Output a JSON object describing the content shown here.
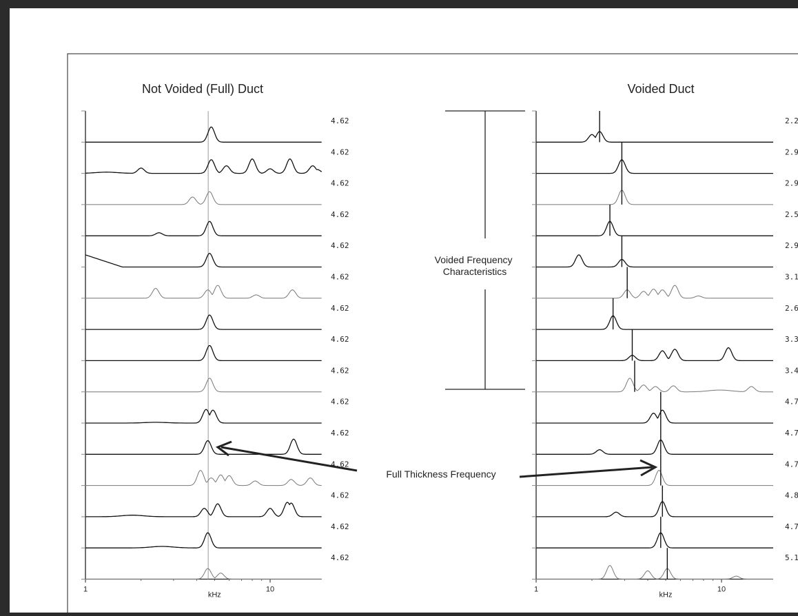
{
  "chart_data": [
    {
      "type": "line",
      "title": "Not Voided (Full) Duct",
      "xlabel": "kHz",
      "x_scale": "log",
      "xlim": [
        1,
        19
      ],
      "tick_labels": [
        "1",
        "10"
      ],
      "reference_lines_khz": [
        4.62
      ],
      "series": [
        {
          "value_label": "4.62",
          "peaks": [
            [
              4.8,
              1.0
            ]
          ]
        },
        {
          "value_label": "4.62",
          "peaks": [
            [
              1.3,
              0.08
            ],
            [
              2.0,
              0.35
            ],
            [
              4.8,
              0.9
            ],
            [
              5.8,
              0.5
            ],
            [
              8.0,
              0.95
            ],
            [
              10.0,
              0.3
            ],
            [
              12.8,
              0.95
            ],
            [
              17.0,
              0.5
            ],
            [
              18.0,
              0.25
            ]
          ]
        },
        {
          "value_label": "4.62",
          "peaks": [
            [
              3.8,
              0.5
            ],
            [
              4.7,
              0.85
            ]
          ]
        },
        {
          "value_label": "4.62",
          "peaks": [
            [
              2.5,
              0.2
            ],
            [
              4.7,
              0.95
            ]
          ]
        },
        {
          "value_label": "4.62",
          "peaks": [
            [
              4.7,
              0.9
            ]
          ]
        },
        {
          "value_label": "4.62",
          "peaks": [
            [
              2.4,
              0.65
            ],
            [
              4.6,
              0.55
            ],
            [
              5.2,
              0.85
            ],
            [
              8.4,
              0.22
            ],
            [
              13.2,
              0.55
            ]
          ]
        },
        {
          "value_label": "4.62",
          "peaks": [
            [
              4.7,
              0.95
            ]
          ]
        },
        {
          "value_label": "4.62",
          "peaks": [
            [
              4.7,
              1.0
            ]
          ]
        },
        {
          "value_label": "4.62",
          "peaks": [
            [
              4.7,
              0.9
            ]
          ]
        },
        {
          "value_label": "4.62",
          "peaks": [
            [
              2.4,
              0.05
            ],
            [
              4.5,
              0.9
            ],
            [
              4.9,
              0.85
            ]
          ]
        },
        {
          "value_label": "4.62",
          "peaks": [
            [
              4.6,
              0.9
            ],
            [
              13.4,
              1.0
            ]
          ]
        },
        {
          "value_label": "4.62",
          "peaks": [
            [
              4.2,
              1.0
            ],
            [
              4.8,
              0.5
            ],
            [
              5.4,
              0.7
            ],
            [
              6.0,
              0.65
            ],
            [
              8.3,
              0.3
            ],
            [
              13.0,
              0.4
            ],
            [
              16.5,
              0.5
            ]
          ]
        },
        {
          "value_label": "4.62",
          "peaks": [
            [
              1.8,
              0.1
            ],
            [
              4.4,
              0.55
            ],
            [
              5.2,
              0.85
            ],
            [
              10.0,
              0.55
            ],
            [
              12.4,
              0.95
            ],
            [
              13.0,
              0.9
            ]
          ]
        },
        {
          "value_label": "4.62",
          "peaks": [
            [
              2.6,
              0.1
            ],
            [
              4.6,
              1.0
            ]
          ]
        },
        {
          "value_label": "4.62",
          "peaks": [
            [
              4.6,
              0.7
            ],
            [
              5.4,
              0.4
            ]
          ]
        }
      ]
    },
    {
      "type": "line",
      "title": "Voided  Duct",
      "xlabel": "kHz",
      "x_scale": "log",
      "xlim": [
        1,
        19
      ],
      "tick_labels": [
        "1",
        "10"
      ],
      "annotation_group_label": "Voided Frequency\nCharacteristics",
      "series": [
        {
          "value_label": "2.2",
          "peak_marker_khz": 2.2,
          "peaks": [
            [
              2.0,
              0.5
            ],
            [
              2.2,
              0.7
            ]
          ]
        },
        {
          "value_label": "2.9",
          "peak_marker_khz": 2.9,
          "peaks": [
            [
              2.9,
              0.9
            ]
          ]
        },
        {
          "value_label": "2.9",
          "peak_marker_khz": 2.9,
          "peaks": [
            [
              2.9,
              0.95
            ]
          ]
        },
        {
          "value_label": "2.5",
          "peak_marker_khz": 2.5,
          "peaks": [
            [
              2.5,
              0.95
            ]
          ]
        },
        {
          "value_label": "2.9",
          "peak_marker_khz": 2.9,
          "peaks": [
            [
              1.7,
              0.8
            ],
            [
              2.9,
              0.5
            ]
          ]
        },
        {
          "value_label": "3.1",
          "peak_marker_khz": 3.1,
          "peaks": [
            [
              3.1,
              0.55
            ],
            [
              3.8,
              0.45
            ],
            [
              4.3,
              0.6
            ],
            [
              4.8,
              0.55
            ],
            [
              5.6,
              0.85
            ],
            [
              7.5,
              0.15
            ]
          ]
        },
        {
          "value_label": "2.6",
          "peak_marker_khz": 2.6,
          "peaks": [
            [
              2.6,
              0.9
            ]
          ]
        },
        {
          "value_label": "3.3",
          "peak_marker_khz": 3.3,
          "peaks": [
            [
              3.3,
              0.35
            ],
            [
              4.8,
              0.65
            ],
            [
              5.6,
              0.75
            ],
            [
              10.9,
              0.85
            ]
          ]
        },
        {
          "value_label": "3.4",
          "peak_marker_khz": 3.4,
          "peaks": [
            [
              3.2,
              0.9
            ],
            [
              3.8,
              0.45
            ],
            [
              4.4,
              0.35
            ],
            [
              5.5,
              0.4
            ],
            [
              9.8,
              0.12
            ],
            [
              14.5,
              0.35
            ]
          ]
        },
        {
          "value_label": "4.7",
          "peak_marker_khz": 4.7,
          "peaks": [
            [
              4.3,
              0.65
            ],
            [
              4.8,
              0.85
            ]
          ]
        },
        {
          "value_label": "4.7",
          "peak_marker_khz": 4.7,
          "peaks": [
            [
              2.2,
              0.3
            ],
            [
              4.7,
              0.95
            ]
          ]
        },
        {
          "value_label": "4.7",
          "peak_marker_khz": 4.7,
          "peaks": [
            [
              4.6,
              1.0
            ]
          ]
        },
        {
          "value_label": "4.8",
          "peak_marker_khz": 4.8,
          "peaks": [
            [
              2.7,
              0.3
            ],
            [
              4.8,
              1.0
            ]
          ]
        },
        {
          "value_label": "4.7",
          "peak_marker_khz": 4.7,
          "peaks": [
            [
              4.7,
              1.0
            ]
          ]
        },
        {
          "value_label": "5.1",
          "peak_marker_khz": 5.1,
          "peaks": [
            [
              2.5,
              0.9
            ],
            [
              4.0,
              0.55
            ],
            [
              5.1,
              0.7
            ],
            [
              12.0,
              0.2
            ]
          ]
        }
      ]
    }
  ],
  "shared_annotation": {
    "text": "Full Thickness Frequency",
    "arrow_targets": [
      "left:series-12",
      "right:series-14"
    ]
  }
}
